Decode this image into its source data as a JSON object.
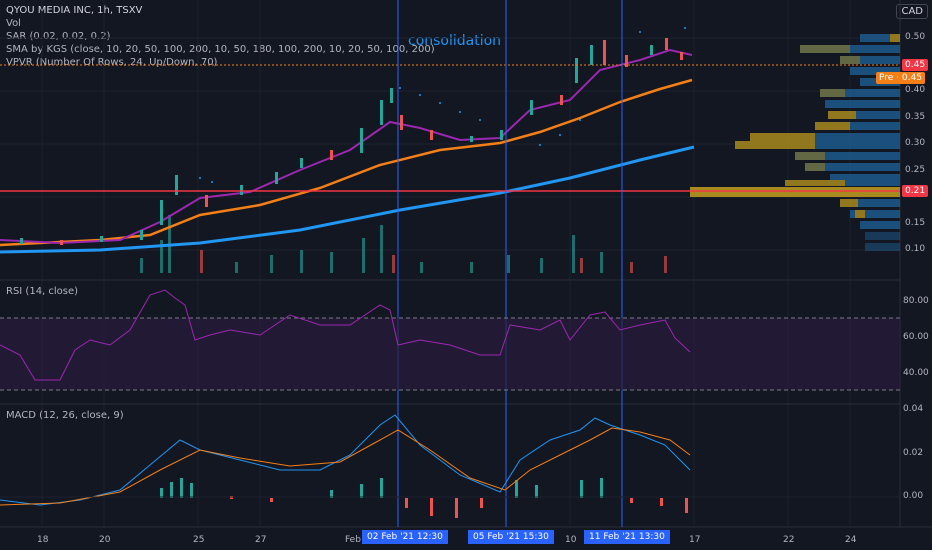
{
  "legend": {
    "title": "QYOU MEDIA INC, 1h, TSXV",
    "vol": "Vol",
    "sar": "SAR (0.02, 0.02, 0.2)",
    "sma": "SMA by KGS (close, 10, 20, 50, 100, 200, 10, 50, 180, 100, 200, 10, 20, 50, 100, 200)",
    "vpvr": "VPVR (Number Of Rows, 24, Up/Down, 70)"
  },
  "currency": "CAD",
  "annotation": "consolidation",
  "price_axis": {
    "labels": [
      "0.50",
      "0.45",
      "0.40",
      "0.35",
      "0.30",
      "0.25",
      "0.20",
      "0.15",
      "0.10"
    ],
    "current_tag": "0.45",
    "pre_tag": "Pre · 0.45",
    "support_tag": "0.21"
  },
  "rsi": {
    "label": "RSI (14, close)",
    "axis": [
      "80.00",
      "60.00",
      "40.00"
    ]
  },
  "macd": {
    "label": "MACD (12, 26, close, 9)",
    "axis": [
      "0.04",
      "0.02",
      "0.00"
    ]
  },
  "time_axis": {
    "labels": [
      "18",
      "20",
      "25",
      "27",
      "Feb",
      "10",
      "17",
      "22",
      "24"
    ],
    "highlights": [
      "02 Feb '21   12:30",
      "05 Feb '21   15:30",
      "11 Feb '21   13:30"
    ]
  },
  "colors": {
    "background": "#131722",
    "up": "#26a69a",
    "down": "#ef5350",
    "sma_fast": "#9c27b0",
    "sma_mid": "#f57f17",
    "sma_slow": "#2196f3",
    "support_line": "#f23645",
    "rsi": "#9c27b0",
    "vpvr_up": "#1e5a8c",
    "vpvr_down": "#a88a1e"
  },
  "chart_data": {
    "type": "candlestick",
    "series": [
      {
        "name": "QYOU MEDIA INC",
        "close": [
          0.12,
          0.115,
          0.113,
          0.118,
          0.12,
          0.13,
          0.16,
          0.2,
          0.19,
          0.21,
          0.24,
          0.26,
          0.27,
          0.28,
          0.32,
          0.36,
          0.4,
          0.35,
          0.33,
          0.31,
          0.3,
          0.31,
          0.34,
          0.36,
          0.37,
          0.4,
          0.44,
          0.48,
          0.5,
          0.46,
          0.47,
          0.49,
          0.47,
          0.45
        ]
      }
    ],
    "support": 0.21,
    "rsi_bands": [
      70,
      30
    ],
    "ylim": [
      0.08,
      0.52
    ]
  }
}
